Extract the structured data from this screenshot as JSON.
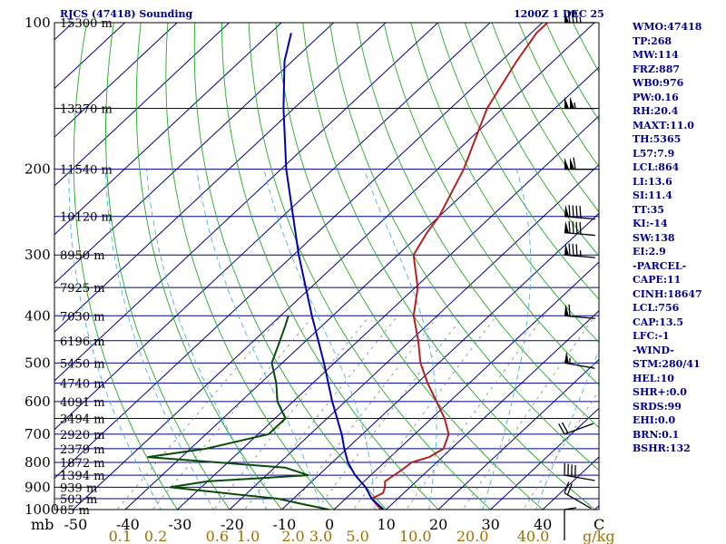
{
  "chart_data": {
    "type": "skew-t",
    "title": "RJCS (47418) Sounding",
    "time": "1200Z  1 DEC 25",
    "pressure_axis": {
      "label": "mb",
      "ticks": [
        "100",
        "200",
        "300",
        "400",
        "500",
        "600",
        "700",
        "800",
        "900",
        "1000"
      ],
      "range": [
        100,
        1000
      ]
    },
    "temperature_axis": {
      "label": "C",
      "ticks": [
        "-50",
        "-40",
        "-30",
        "-20",
        "-10",
        "0",
        "10",
        "20",
        "30",
        "40"
      ],
      "range": [
        -50,
        50
      ]
    },
    "mixing_ratio_axis": {
      "unit": "g/kg",
      "ticks": [
        "0.1",
        "0.2",
        "0.6",
        "1.0",
        "2.0",
        "3.0",
        "5.0",
        "10.0",
        "20.0",
        "40.0"
      ]
    },
    "height_labels": [
      {
        "p": 100,
        "text": "15300 m"
      },
      {
        "p": 150,
        "text": "13370 m"
      },
      {
        "p": 200,
        "text": "11540 m"
      },
      {
        "p": 250,
        "text": "10120 m"
      },
      {
        "p": 300,
        "text": "8950 m"
      },
      {
        "p": 350,
        "text": "7925 m"
      },
      {
        "p": 400,
        "text": "7030 m"
      },
      {
        "p": 450,
        "text": "6196 m"
      },
      {
        "p": 500,
        "text": "5450 m"
      },
      {
        "p": 550,
        "text": "4740 m"
      },
      {
        "p": 600,
        "text": "4091 m"
      },
      {
        "p": 650,
        "text": "3494 m"
      },
      {
        "p": 700,
        "text": "2920 m"
      },
      {
        "p": 750,
        "text": "2379 m"
      },
      {
        "p": 800,
        "text": "1872 m"
      },
      {
        "p": 850,
        "text": "1394 m"
      },
      {
        "p": 900,
        "text": "939 m"
      },
      {
        "p": 950,
        "text": "503 m"
      },
      {
        "p": 1000,
        "text": "85 m"
      }
    ],
    "series": [
      {
        "name": "temperature",
        "color": "#b22222",
        "points": [
          [
            1000,
            9.0
          ],
          [
            975,
            7.0
          ],
          [
            950,
            5.0
          ],
          [
            925,
            6.0
          ],
          [
            900,
            5.2
          ],
          [
            875,
            4.0
          ],
          [
            850,
            4.5
          ],
          [
            820,
            5.0
          ],
          [
            800,
            5.2
          ],
          [
            780,
            7.5
          ],
          [
            750,
            8.5
          ],
          [
            700,
            6.5
          ],
          [
            650,
            2.5
          ],
          [
            600,
            -2.5
          ],
          [
            550,
            -8.0
          ],
          [
            500,
            -13.5
          ],
          [
            450,
            -18.5
          ],
          [
            400,
            -24.5
          ],
          [
            350,
            -29.5
          ],
          [
            300,
            -37.0
          ],
          [
            270,
            -39.0
          ],
          [
            250,
            -40.0
          ],
          [
            200,
            -45.0
          ],
          [
            150,
            -53.0
          ],
          [
            120,
            -57.0
          ],
          [
            105,
            -59.0
          ],
          [
            100,
            -59.0
          ]
        ]
      },
      {
        "name": "dewpoint",
        "color": "#0b4a0b",
        "points": [
          [
            1000,
            -1.0
          ],
          [
            975,
            -7.0
          ],
          [
            950,
            -13.0
          ],
          [
            925,
            -24.5
          ],
          [
            900,
            -36.0
          ],
          [
            875,
            -30.0
          ],
          [
            850,
            -12.0
          ],
          [
            820,
            -18.0
          ],
          [
            780,
            -46.5
          ],
          [
            750,
            -37.0
          ],
          [
            700,
            -28.0
          ],
          [
            650,
            -28.0
          ],
          [
            600,
            -33.0
          ],
          [
            550,
            -37.0
          ],
          [
            500,
            -42.0
          ],
          [
            450,
            -45.0
          ],
          [
            420,
            -47.0
          ],
          [
            400,
            -48.5
          ]
        ]
      },
      {
        "name": "parcel",
        "color": "#0000aa",
        "points": [
          [
            1000,
            9.5
          ],
          [
            950,
            5.0
          ],
          [
            900,
            1.5
          ],
          [
            850,
            -3.0
          ],
          [
            800,
            -7.0
          ],
          [
            750,
            -10.5
          ],
          [
            700,
            -14.0
          ],
          [
            600,
            -22.5
          ],
          [
            500,
            -32.0
          ],
          [
            400,
            -44.0
          ],
          [
            300,
            -59.0
          ],
          [
            200,
            -79.0
          ],
          [
            150,
            -92.0
          ],
          [
            120,
            -101.5
          ],
          [
            105,
            -106.0
          ]
        ]
      }
    ],
    "wind_barbs": [
      {
        "p": 100,
        "dir": 270,
        "speed": 85
      },
      {
        "p": 150,
        "dir": 270,
        "speed": 105
      },
      {
        "p": 200,
        "dir": 270,
        "speed": 110
      },
      {
        "p": 250,
        "dir": 275,
        "speed": 90
      },
      {
        "p": 270,
        "dir": 275,
        "speed": 90
      },
      {
        "p": 300,
        "dir": 275,
        "speed": 85
      },
      {
        "p": 400,
        "dir": 275,
        "speed": 60
      },
      {
        "p": 500,
        "dir": 280,
        "speed": 55
      },
      {
        "p": 700,
        "dir": 250,
        "speed": 20
      },
      {
        "p": 850,
        "dir": 280,
        "speed": 40
      },
      {
        "p": 925,
        "dir": 300,
        "speed": 20
      },
      {
        "p": 1000,
        "dir": 360,
        "speed": 10
      }
    ],
    "colors": {
      "isobar": "#000080",
      "isotherm": "#000080",
      "dry_adiabat": "#22aa22",
      "moist_adiabat": "#4ab0e0",
      "mixing_ratio": "#808080",
      "index_text": "#00008b",
      "mixing_label": "#a07000"
    }
  },
  "indices": [
    "WMO:47418",
    "TP:268",
    "MW:114",
    "FRZ:887",
    "WB0:976",
    "PW:0.16",
    "RH:20.4",
    "MAXT:11.0",
    "TH:5365",
    "L57:7.9",
    "LCL:864",
    "LI:13.6",
    "SI:11.4",
    "TT:35",
    "KI:-14",
    "SW:138",
    "EI:2.9",
    "-PARCEL-",
    "CAPE:11",
    "CINH:18647",
    "LCL:756",
    "CAP:13.5",
    "LFC:-1",
    "-WIND-",
    "STM:280/41",
    "HEL:10",
    "SHR+:0.0",
    "SRDS:99",
    "EHI:0.0",
    "BRN:0.1",
    "BSHR:132"
  ]
}
